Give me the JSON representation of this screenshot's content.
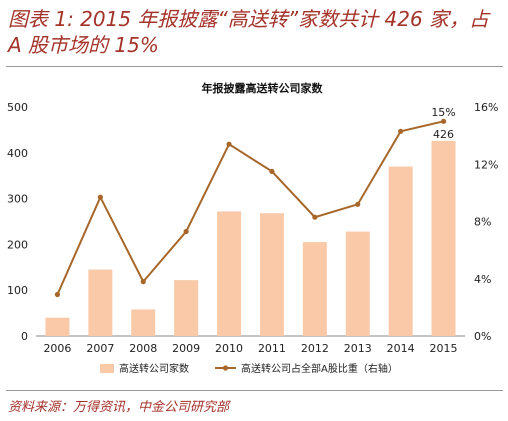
{
  "figure": {
    "title": "图表 1: 2015 年报披露“高送转”家数共计 426 家，占 A 股市场的 15%",
    "source": "资料来源：万得资讯，中金公司研究部"
  },
  "chart_data": {
    "type": "bar",
    "title": "年报披露高送转公司家数",
    "categories": [
      "2006",
      "2007",
      "2008",
      "2009",
      "2010",
      "2011",
      "2012",
      "2013",
      "2014",
      "2015"
    ],
    "series": [
      {
        "name": "高送转公司家数",
        "type": "bar",
        "axis": "left",
        "values": [
          40,
          145,
          58,
          122,
          272,
          268,
          205,
          228,
          370,
          426
        ],
        "color": "#f9c9a8"
      },
      {
        "name": "高送转公司占全部A股比重（右轴）",
        "type": "line",
        "axis": "right",
        "values": [
          2.9,
          9.7,
          3.8,
          7.3,
          13.4,
          11.5,
          8.3,
          9.2,
          14.3,
          15.0
        ],
        "color": "#a7672a"
      }
    ],
    "y_left": {
      "min": 0,
      "max": 500,
      "ticks": [
        "0",
        "100",
        "200",
        "300",
        "400",
        "500"
      ]
    },
    "y_right": {
      "min": 0,
      "max": 16,
      "ticks": [
        "0%",
        "4%",
        "8%",
        "12%",
        "16%"
      ]
    },
    "annotations": [
      {
        "category": "2015",
        "text": "15%"
      },
      {
        "category": "2015",
        "text": "426"
      }
    ],
    "grid": false,
    "legend": "bottom"
  }
}
